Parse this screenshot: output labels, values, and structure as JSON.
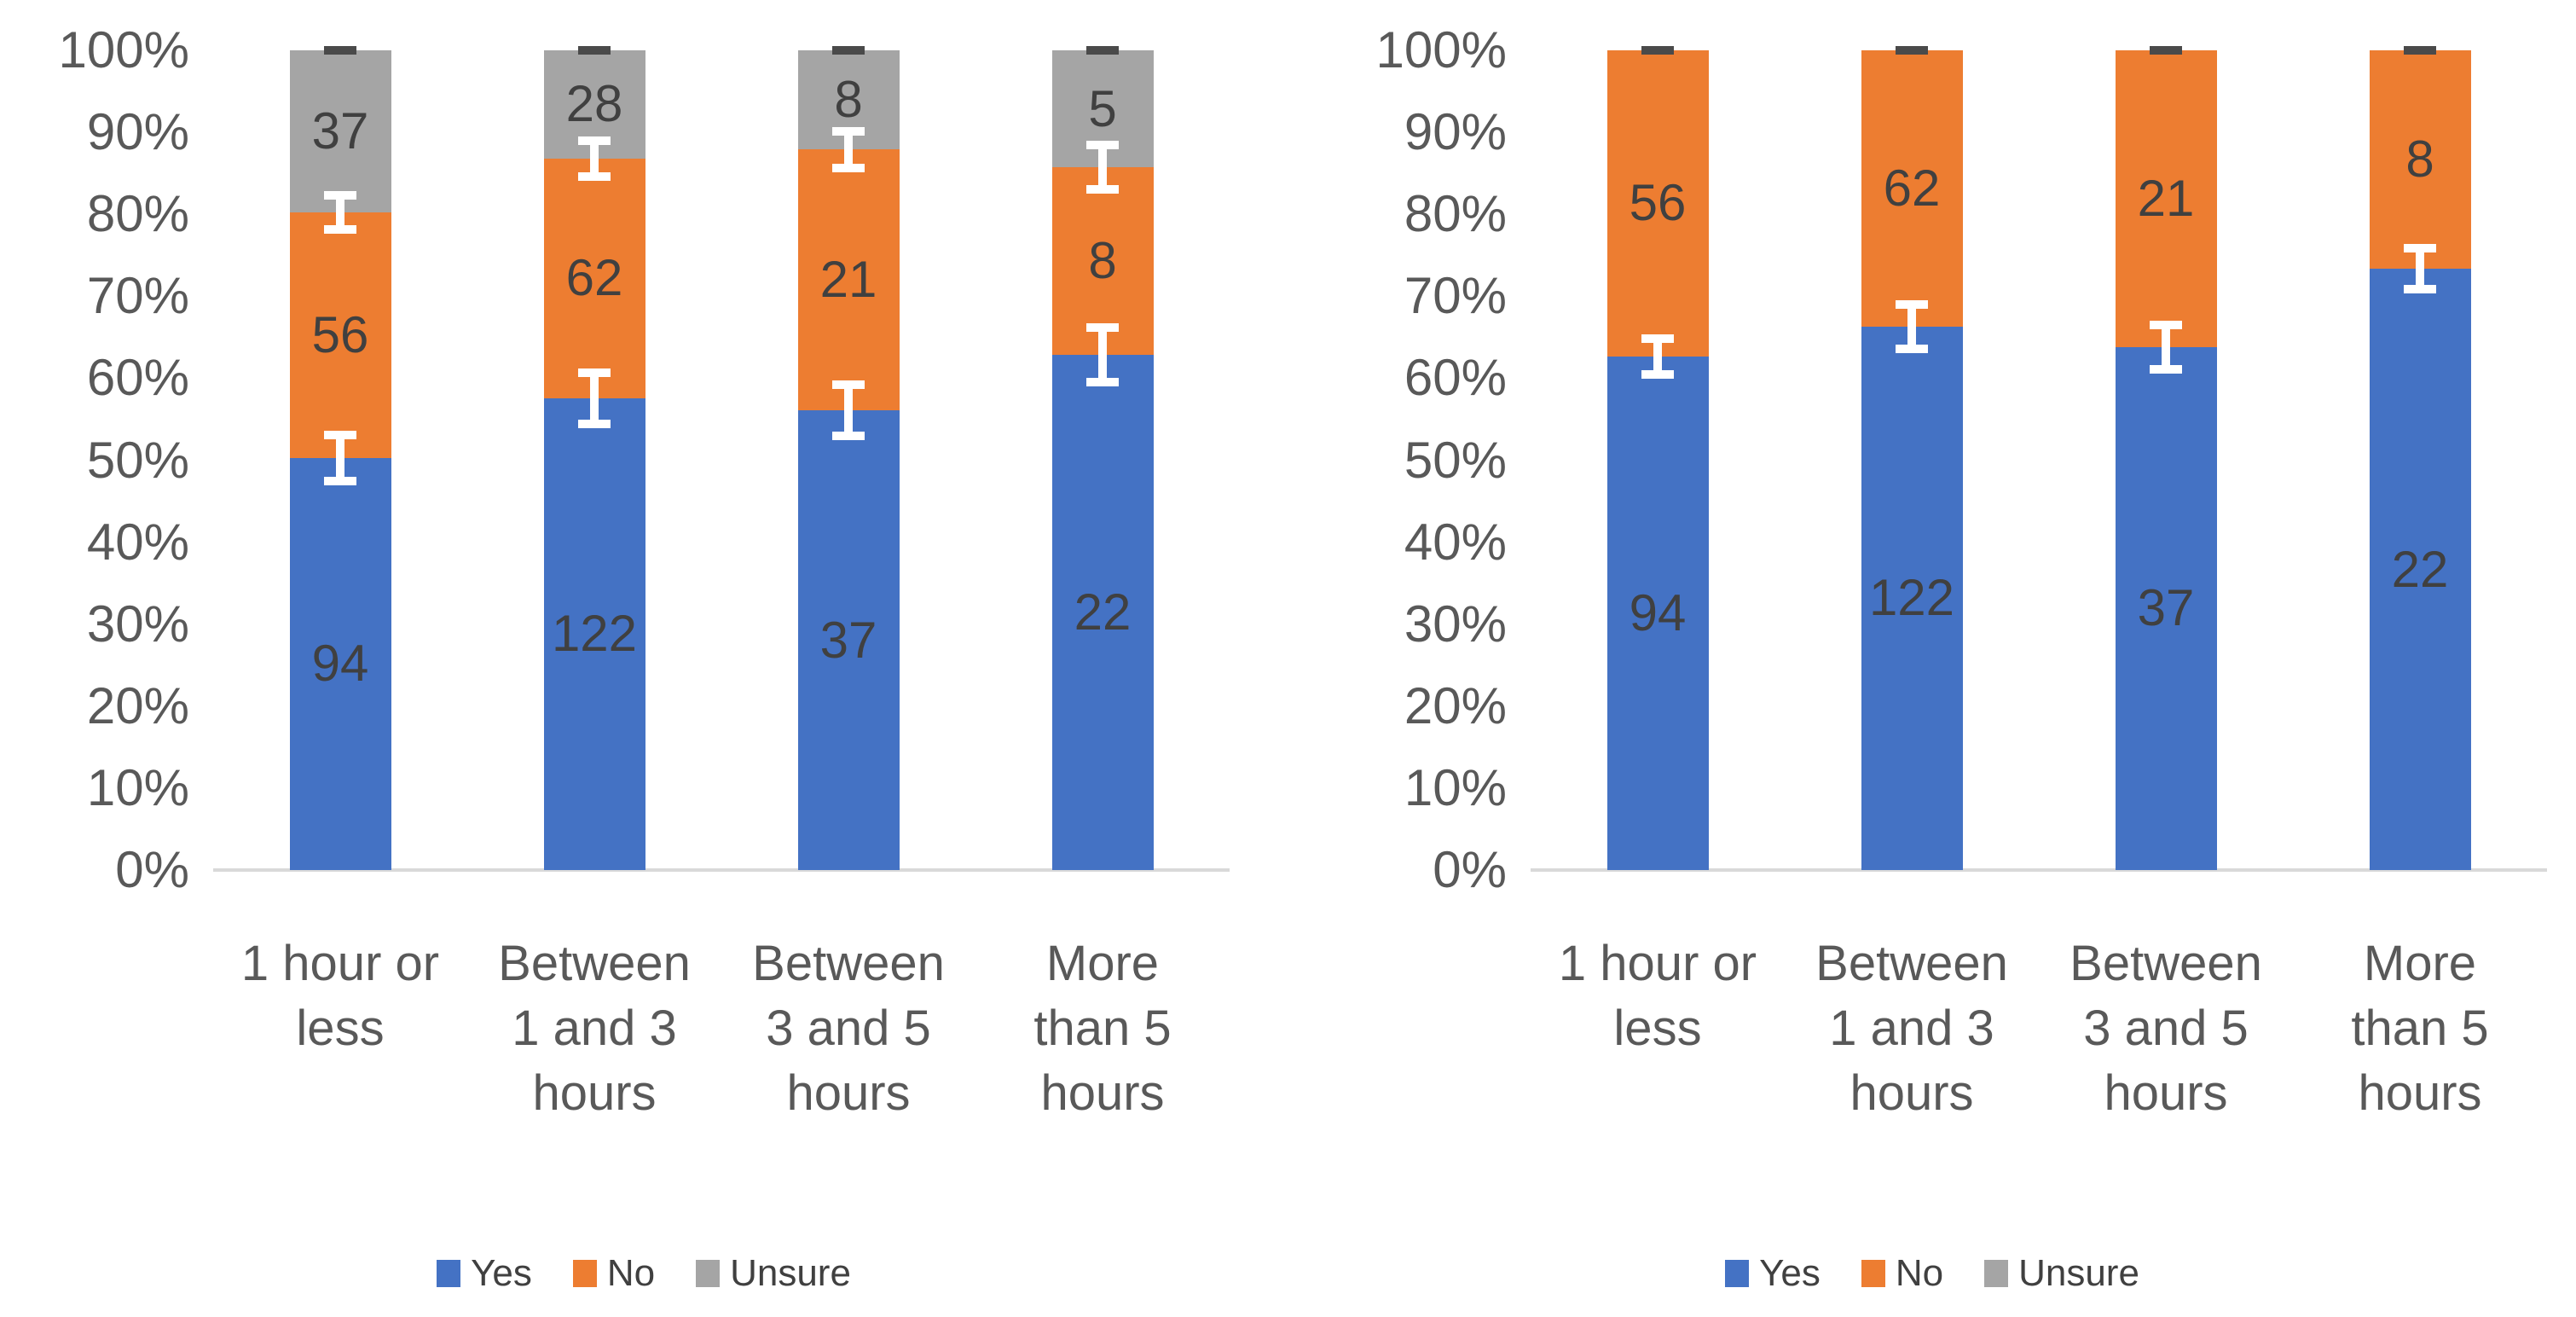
{
  "figure": {
    "background": "#FFFFFF",
    "description": "Two 100% stacked column charts of Yes/No/Unsure responses by hours spent; right chart shows Yes and No only with Unsure excluded"
  },
  "colors": {
    "yes": "#4472C4",
    "no": "#ED7D31",
    "unsure": "#A5A5A5",
    "error_bar": "#FFFFFF",
    "error_bar_top_cap": "#4A4A4A",
    "axis_line": "#D9D9D9",
    "axis_text": "#595959",
    "data_label_text": "#404040"
  },
  "y_axis": {
    "min": 0,
    "max": 100,
    "ticks": [
      "0%",
      "10%",
      "20%",
      "30%",
      "40%",
      "50%",
      "60%",
      "70%",
      "80%",
      "90%",
      "100%"
    ]
  },
  "x_axis": {
    "category_labels": [
      [
        "1 hour or",
        "less"
      ],
      [
        "Between",
        "1 and 3",
        "hours"
      ],
      [
        "Between",
        "3 and 5",
        "hours"
      ],
      [
        "More",
        "than 5",
        "hours"
      ]
    ]
  },
  "legend": {
    "items": [
      {
        "label": "Yes",
        "color": "#4472C4"
      },
      {
        "label": "No",
        "color": "#ED7D31"
      },
      {
        "label": "Unsure",
        "color": "#A5A5A5"
      }
    ]
  },
  "chart_data": [
    {
      "id": "left",
      "type": "bar",
      "stacked": true,
      "percent_stacked": true,
      "categories": [
        "1 hour or less",
        "Between 1 and 3 hours",
        "Between 3 and 5 hours",
        "More than 5 hours"
      ],
      "series": [
        {
          "name": "Yes",
          "color": "#4472C4",
          "values": [
            94,
            122,
            37,
            22
          ]
        },
        {
          "name": "No",
          "color": "#ED7D31",
          "values": [
            56,
            62,
            21,
            8
          ]
        },
        {
          "name": "Unsure",
          "color": "#A5A5A5",
          "values": [
            37,
            28,
            8,
            5
          ]
        }
      ],
      "segment_percents": {
        "Yes": [
          50.3,
          57.5,
          56.1,
          62.9
        ],
        "No": [
          29.9,
          29.2,
          31.8,
          22.9
        ],
        "Unsure": [
          19.8,
          13.2,
          12.1,
          14.3
        ]
      },
      "error_margins_pct": [
        [
          2.8,
          2.1,
          0
        ],
        [
          3.1,
          2.2,
          0
        ],
        [
          3.1,
          2.2,
          0
        ],
        [
          3.3,
          2.7,
          0
        ]
      ],
      "ylim": [
        0,
        100
      ],
      "grid": false,
      "legend_position": "bottom",
      "data_labels": "raw counts"
    },
    {
      "id": "right",
      "type": "bar",
      "stacked": true,
      "percent_stacked": true,
      "categories": [
        "1 hour or less",
        "Between 1 and 3 hours",
        "Between 3 and 5 hours",
        "More than 5 hours"
      ],
      "series": [
        {
          "name": "Yes",
          "color": "#4472C4",
          "values": [
            94,
            122,
            37,
            22
          ]
        },
        {
          "name": "No",
          "color": "#ED7D31",
          "values": [
            56,
            62,
            21,
            8
          ]
        }
      ],
      "segment_percents": {
        "Yes": [
          62.7,
          66.3,
          63.8,
          73.3
        ],
        "No": [
          37.3,
          33.7,
          36.2,
          26.7
        ]
      },
      "error_margins_pct": [
        [
          2.2,
          0
        ],
        [
          2.7,
          0
        ],
        [
          2.7,
          0
        ],
        [
          2.5,
          0
        ]
      ],
      "ylim": [
        0,
        100
      ],
      "grid": false,
      "legend_position": "bottom",
      "data_labels": "raw counts"
    }
  ]
}
